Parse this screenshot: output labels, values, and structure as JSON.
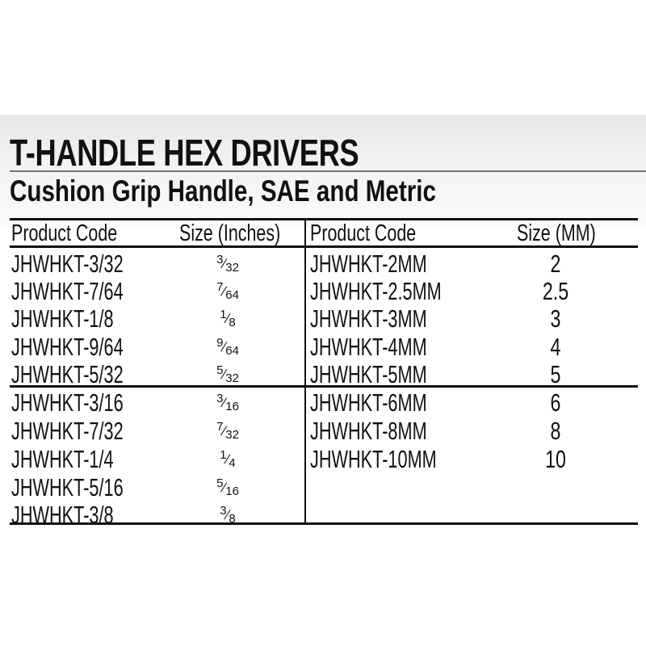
{
  "title": "T-HANDLE HEX DRIVERS",
  "subtitle": "Cushion Grip Handle, SAE and Metric",
  "sae_table": {
    "headers": [
      "Product Code",
      "Size (Inches)"
    ],
    "rows": [
      {
        "code": "JHWHKT-3/32",
        "num": "3",
        "den": "32"
      },
      {
        "code": "JHWHKT-7/64",
        "num": "7",
        "den": "64"
      },
      {
        "code": "JHWHKT-1/8",
        "num": "1",
        "den": "8"
      },
      {
        "code": "JHWHKT-9/64",
        "num": "9",
        "den": "64"
      },
      {
        "code": "JHWHKT-5/32",
        "num": "5",
        "den": "32"
      },
      {
        "code": "JHWHKT-3/16",
        "num": "3",
        "den": "16"
      },
      {
        "code": "JHWHKT-7/32",
        "num": "7",
        "den": "32"
      },
      {
        "code": "JHWHKT-1/4",
        "num": "1",
        "den": "4"
      },
      {
        "code": "JHWHKT-5/16",
        "num": "5",
        "den": "16"
      },
      {
        "code": "JHWHKT-3/8",
        "num": "3",
        "den": "8"
      }
    ]
  },
  "metric_table": {
    "headers": [
      "Product Code",
      "Size (MM)"
    ],
    "rows": [
      {
        "code": "JHWHKT-2MM",
        "size": "2"
      },
      {
        "code": "JHWHKT-2.5MM",
        "size": "2.5"
      },
      {
        "code": "JHWHKT-3MM",
        "size": "3"
      },
      {
        "code": "JHWHKT-4MM",
        "size": "4"
      },
      {
        "code": "JHWHKT-5MM",
        "size": "5"
      },
      {
        "code": "JHWHKT-6MM",
        "size": "6"
      },
      {
        "code": "JHWHKT-8MM",
        "size": "8"
      },
      {
        "code": "JHWHKT-10MM",
        "size": "10"
      }
    ]
  }
}
